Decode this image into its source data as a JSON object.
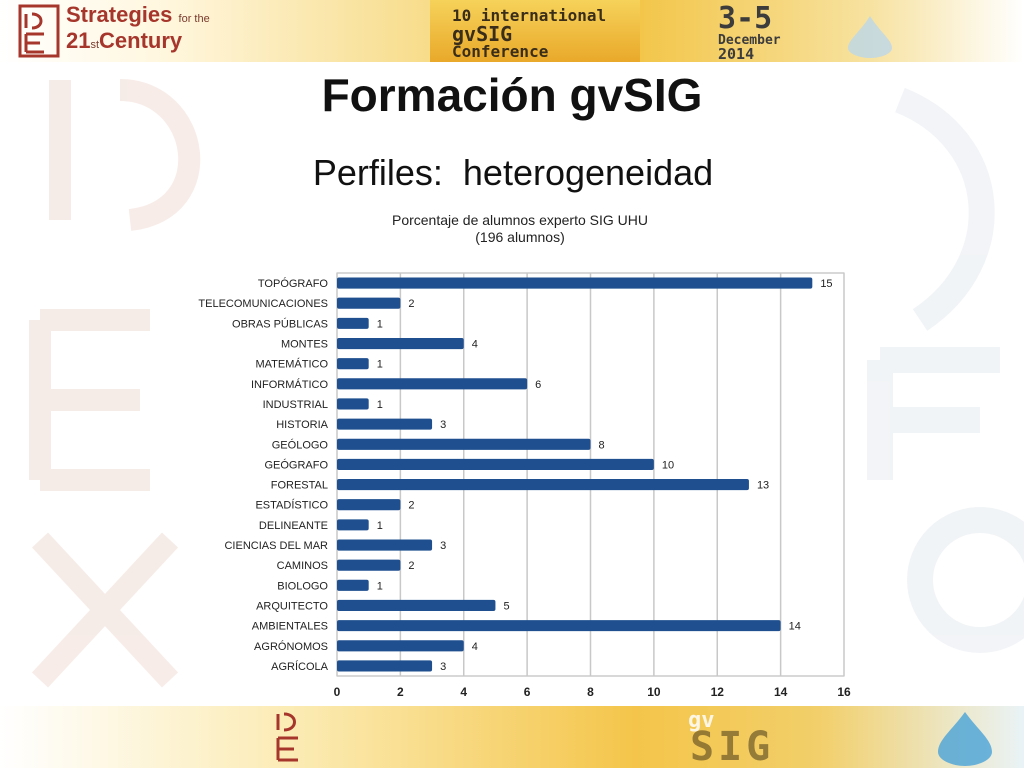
{
  "header": {
    "event_line1": "Strategies",
    "event_for_the": "for the",
    "event_line2": "21",
    "event_st": "st",
    "event_century": "Century",
    "conf_line1": "10 international",
    "conf_line2": "gvSIG",
    "conf_line3": "Conference",
    "date_range": "3-5",
    "date_month": "December",
    "date_year": "2014"
  },
  "footer": {
    "gv": "gv",
    "sig": "SIG"
  },
  "slide": {
    "title": "Formación gvSIG",
    "subtitle": "Perfiles:  heterogeneidad"
  },
  "colors": {
    "bar": "#1f4f8f",
    "grid": "#c8c8c8",
    "plot_bg": "#ffffff",
    "accent_red": "#a6362c",
    "accent_gold": "#f2c444"
  },
  "chart_data": {
    "type": "bar",
    "orientation": "horizontal",
    "title": "Porcentaje de alumnos experto SIG UHU",
    "subtitle": "(196 alumnos)",
    "categories": [
      "TOPÓGRAFO",
      "TELECOMUNICACIONES",
      "OBRAS PÚBLICAS",
      "MONTES",
      "MATEMÁTICO",
      "INFORMÁTICO",
      "INDUSTRIAL",
      "HISTORIA",
      "GEÓLOGO",
      "GEÓGRAFO",
      "FORESTAL",
      "ESTADÍSTICO",
      "DELINEANTE",
      "CIENCIAS DEL MAR",
      "CAMINOS",
      "BIOLOGO",
      "ARQUITECTO",
      "AMBIENTALES",
      "AGRÓNOMOS",
      "AGRÍCOLA"
    ],
    "values": [
      15,
      2,
      1,
      4,
      1,
      6,
      1,
      3,
      8,
      10,
      13,
      2,
      1,
      3,
      2,
      1,
      5,
      14,
      4,
      3
    ],
    "xlim": [
      0,
      16
    ],
    "xticks": [
      0,
      2,
      4,
      6,
      8,
      10,
      12,
      14,
      16
    ],
    "grid": true,
    "data_labels": true
  }
}
